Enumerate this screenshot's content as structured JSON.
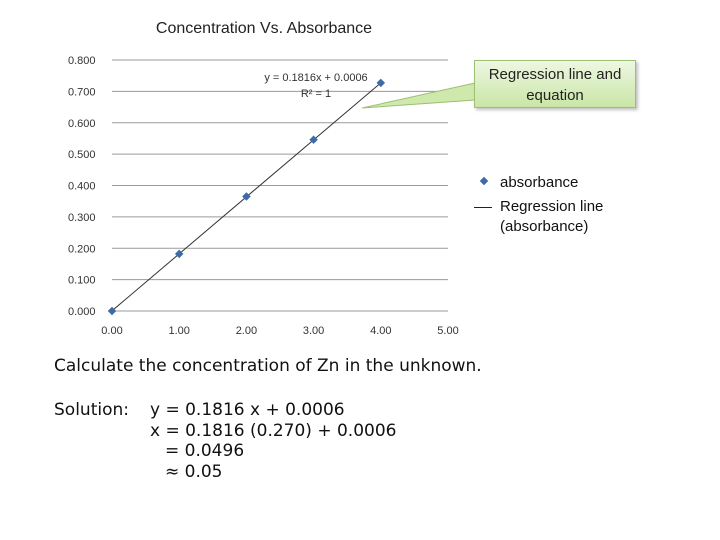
{
  "chart_data": {
    "type": "scatter",
    "title": "Concentration Vs. Absorbance",
    "xlim": [
      0,
      5
    ],
    "ylim": [
      0,
      0.8
    ],
    "x_ticks": [
      "0.00",
      "1.00",
      "2.00",
      "3.00",
      "4.00",
      "5.00"
    ],
    "y_ticks": [
      "0.000",
      "0.100",
      "0.200",
      "0.300",
      "0.400",
      "0.500",
      "0.600",
      "0.700",
      "0.800"
    ],
    "grid": "horizontal",
    "series": [
      {
        "name": "absorbance",
        "x": [
          0,
          1,
          2,
          3,
          4
        ],
        "y": [
          0.0,
          0.182,
          0.365,
          0.546,
          0.727
        ],
        "color": "#3d6ba8"
      }
    ],
    "trendline": {
      "name": "Regression line (absorbance)",
      "slope": 0.1816,
      "intercept": 0.0006,
      "x_range": [
        0,
        4
      ],
      "equation": "y = 0.1816x + 0.0006",
      "r2": "R² = 1"
    },
    "legend": [
      "absorbance",
      "Regression line",
      "(absorbance)"
    ],
    "legend_position": "right"
  },
  "callout": {
    "line1": "Regression line and",
    "line2": "equation"
  },
  "problem_text": "Calculate  the concentration of  Zn in the unknown.",
  "solution": {
    "label": "Solution:",
    "lines": [
      "y = 0.1816 x + 0.0006",
      "x = 0.1816 (0.270) + 0.0006",
      "= 0.0496",
      "≈ 0.05"
    ]
  }
}
